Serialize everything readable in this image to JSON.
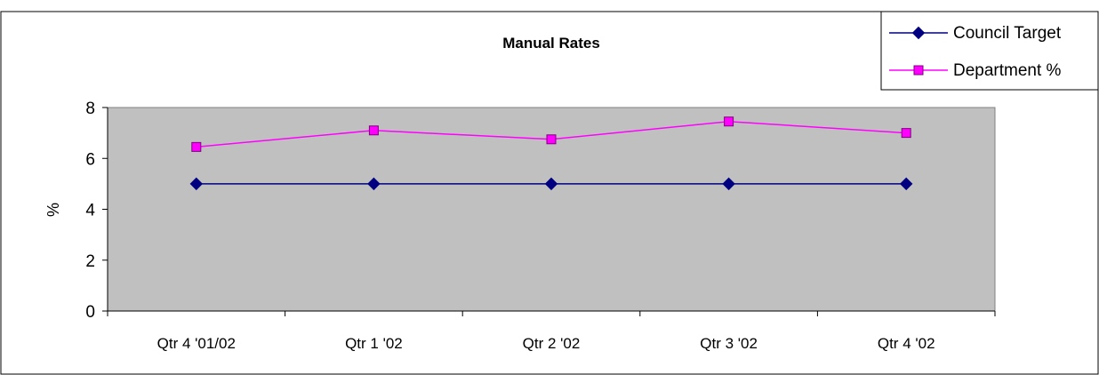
{
  "chart_data": {
    "type": "line",
    "title": "Manual Rates",
    "xlabel": "",
    "ylabel": "%",
    "categories": [
      "Qtr 4 '01/02",
      "Qtr 1 '02",
      "Qtr 2 '02",
      "Qtr 3 '02",
      "Qtr 4 '02"
    ],
    "ylim": [
      0,
      8
    ],
    "yticks": [
      0,
      2,
      4,
      6,
      8
    ],
    "grid": false,
    "legend_position": "top-right",
    "plot_background": "#c0c0c0",
    "series": [
      {
        "name": "Council Target",
        "values": [
          5,
          5,
          5,
          5,
          5
        ],
        "color": "#000080",
        "marker": "diamond"
      },
      {
        "name": "Department %",
        "values": [
          6.45,
          7.1,
          6.75,
          7.45,
          7.0
        ],
        "color": "#ff00ff",
        "marker": "square"
      }
    ]
  }
}
